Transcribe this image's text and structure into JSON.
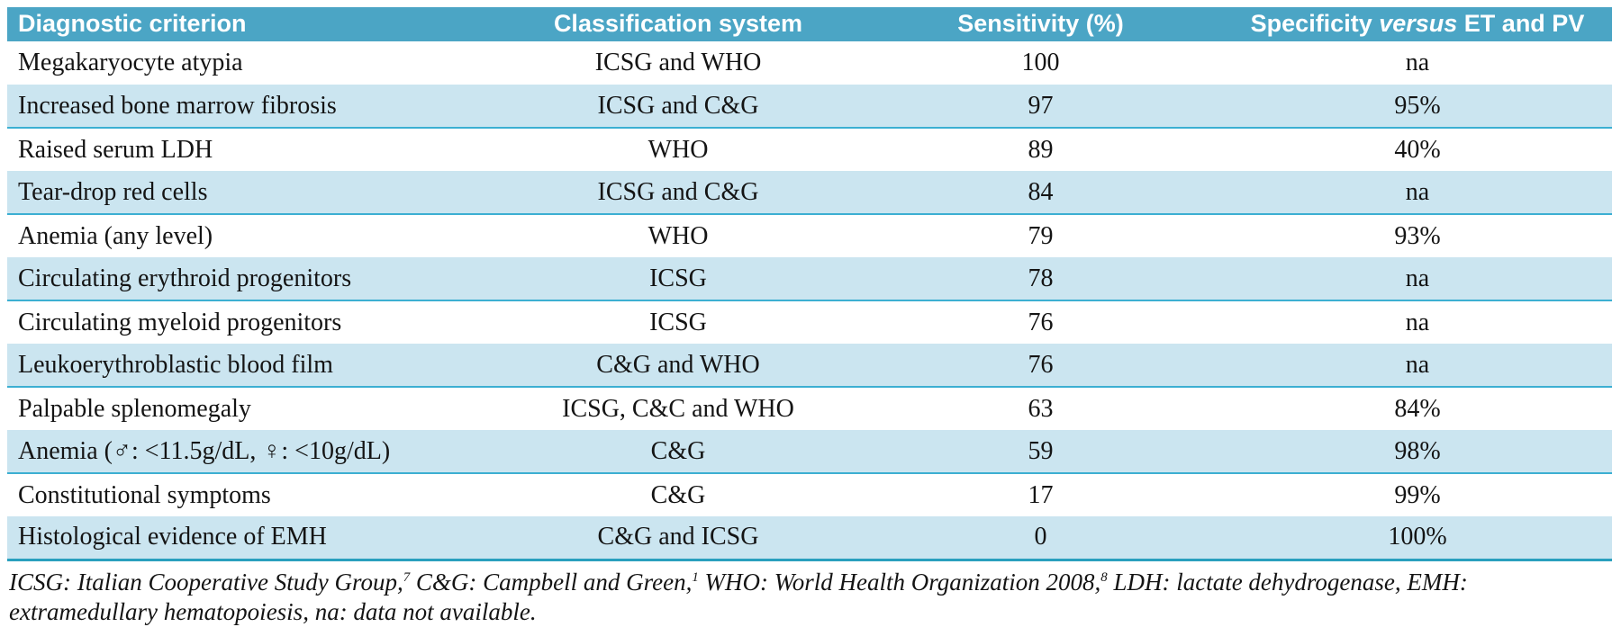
{
  "table": {
    "header": {
      "criterion": "Diagnostic criterion",
      "classification": "Classification system",
      "sensitivity": "Sensitivity (%)",
      "specificity_prefix": "Specificity ",
      "specificity_italic": "versus",
      "specificity_suffix": " ET and PV"
    },
    "rows": [
      {
        "criterion": "Megakaryocyte atypia",
        "classification": "ICSG and WHO",
        "sensitivity": "100",
        "specificity": "na"
      },
      {
        "criterion": "Increased bone marrow fibrosis",
        "classification": "ICSG and C&G",
        "sensitivity": "97",
        "specificity": "95%"
      },
      {
        "criterion": "Raised serum LDH",
        "classification": "WHO",
        "sensitivity": "89",
        "specificity": "40%"
      },
      {
        "criterion": "Tear-drop red cells",
        "classification": "ICSG and C&G",
        "sensitivity": "84",
        "specificity": "na"
      },
      {
        "criterion": "Anemia (any level)",
        "classification": "WHO",
        "sensitivity": "79",
        "specificity": "93%"
      },
      {
        "criterion": "Circulating erythroid progenitors",
        "classification": "ICSG",
        "sensitivity": "78",
        "specificity": "na"
      },
      {
        "criterion": "Circulating myeloid progenitors",
        "classification": "ICSG",
        "sensitivity": "76",
        "specificity": "na"
      },
      {
        "criterion": "Leukoerythroblastic blood film",
        "classification": "C&G and WHO",
        "sensitivity": "76",
        "specificity": "na"
      },
      {
        "criterion": "Palpable splenomegaly",
        "classification": "ICSG, C&C and WHO",
        "sensitivity": "63",
        "specificity": "84%"
      },
      {
        "criterion": "Anemia (♂: <11.5g/dL, ♀: <10g/dL)",
        "classification": "C&G",
        "sensitivity": "59",
        "specificity": "98%"
      },
      {
        "criterion": "Constitutional symptoms",
        "classification": "C&G",
        "sensitivity": "17",
        "specificity": "99%"
      },
      {
        "criterion": "Histological evidence of EMH",
        "classification": "C&G and ICSG",
        "sensitivity": "0",
        "specificity": "100%"
      }
    ]
  },
  "footnote": {
    "segments": [
      {
        "text": "ICSG: Italian Cooperative Study Group,"
      },
      {
        "sup": "7"
      },
      {
        "text": " C&G: Campbell and Green,"
      },
      {
        "sup": "1"
      },
      {
        "text": " WHO: World Health Organization 2008,"
      },
      {
        "sup": "8"
      },
      {
        "text": " LDH: lactate dehydrogenase, EMH: extramedullary hematopoiesis, na: data not available."
      }
    ],
    "full_text": "ICSG: Italian Cooperative Study Group,7 C&G: Campbell and Green,1 WHO: World Health Organization 2008,8 LDH: lactate dehydrogenase, EMH: extramedullary hematopoiesis, na: data not available."
  },
  "colors": {
    "header_bg": "#4BA5C5",
    "row_shaded_bg": "#CBE5F0",
    "row_border": "#3CAFD2",
    "table_bottom_border": "#2AA0BE"
  }
}
